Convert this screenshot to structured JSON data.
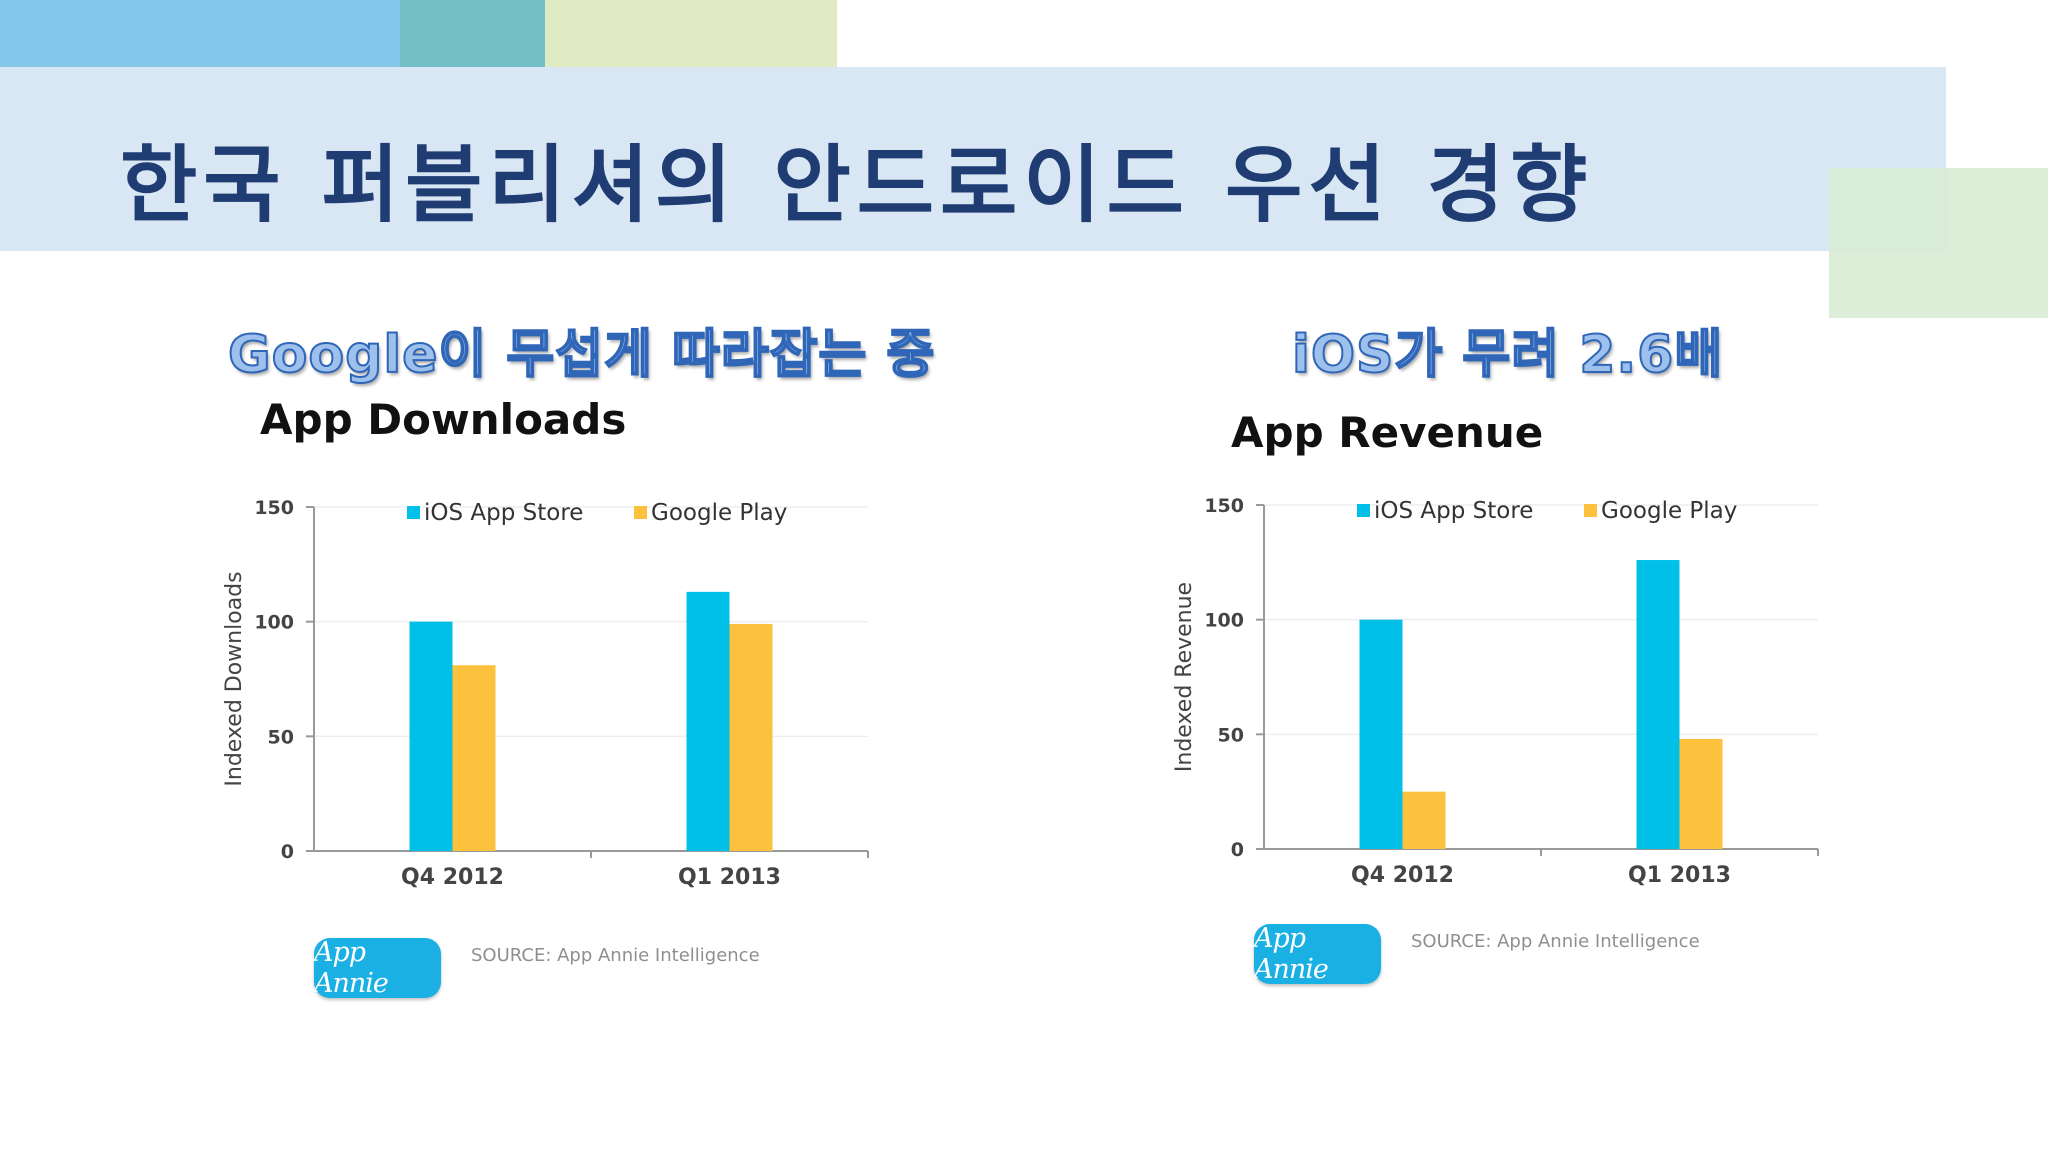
{
  "slide": {
    "title": "한국 퍼블리셔의 안드로이드 우선 경향",
    "colors": {
      "title": "#1f3d73",
      "band": "#d9e6f4",
      "subtitle_fill": "#9dc0ec",
      "subtitle_outline": "#2f66b8"
    }
  },
  "left": {
    "subtitle": "Google이 무섭게 따라잡는 중",
    "source": "SOURCE: App Annie Intelligence",
    "logo": "App Annie"
  },
  "right": {
    "subtitle": "iOS가 무려 2.6배",
    "source": "SOURCE: App Annie Intelligence",
    "logo": "App Annie"
  },
  "chart_data": [
    {
      "type": "bar",
      "title": "App Downloads",
      "xlabel": "",
      "ylabel": "Indexed Downloads",
      "categories": [
        "Q4 2012",
        "Q1 2013"
      ],
      "series": [
        {
          "name": "iOS App Store",
          "values": [
            100,
            113
          ],
          "color": "#00c0e8"
        },
        {
          "name": "Google Play",
          "values": [
            81,
            99
          ],
          "color": "#fcc13d"
        }
      ],
      "ylim": [
        0,
        150
      ],
      "yticks": [
        0,
        50,
        100,
        150
      ],
      "grid": true,
      "legend": "top-center"
    },
    {
      "type": "bar",
      "title": "App Revenue",
      "xlabel": "",
      "ylabel": "Indexed Revenue",
      "categories": [
        "Q4 2012",
        "Q1 2013"
      ],
      "series": [
        {
          "name": "iOS App Store",
          "values": [
            100,
            126
          ],
          "color": "#00c0e8"
        },
        {
          "name": "Google Play",
          "values": [
            25,
            48
          ],
          "color": "#fcc13d"
        }
      ],
      "ylim": [
        0,
        150
      ],
      "yticks": [
        0,
        50,
        100,
        150
      ],
      "grid": true,
      "legend": "top-center"
    }
  ]
}
